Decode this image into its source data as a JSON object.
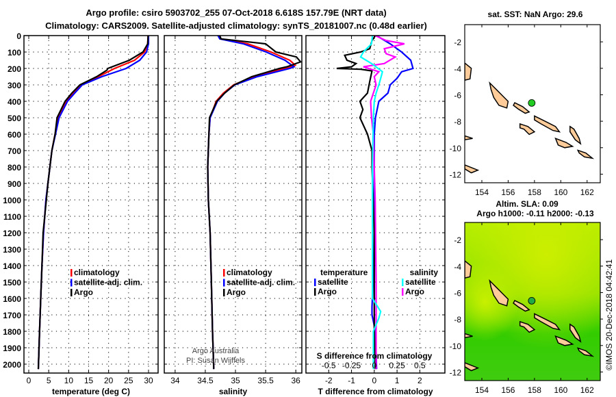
{
  "title": [
    "Argo profile: csiro 5903702_255 07-Oct-2018 6.618S 157.79E (NRT data)",
    "Climatology: CARS2009. Satellite-adjusted climatology: synTS_20181007.nc (0.48d earlier)"
  ],
  "credit": "©IMOS 20-Dec-2018 04:42:41",
  "attribution": [
    "Argo Australia",
    "PI: Susan Wijffels"
  ],
  "chart_data": [
    {
      "id": "temperature",
      "type": "line",
      "xlabel": "temperature (deg C)",
      "xlim": [
        -1.2,
        32.4
      ],
      "xticks": [
        0,
        5,
        10,
        15,
        20,
        25,
        30
      ],
      "ylim": [
        2050,
        0
      ],
      "yticks": [
        0,
        100,
        200,
        300,
        400,
        500,
        600,
        700,
        800,
        900,
        1000,
        1100,
        1200,
        1300,
        1400,
        1500,
        1600,
        1700,
        1800,
        1900,
        2000
      ],
      "grid": true,
      "legend": [
        {
          "label": "climatology",
          "color": "#ff0000"
        },
        {
          "label": "satellite-adj. clim.",
          "color": "#0000ff"
        },
        {
          "label": "Argo",
          "color": "#000000"
        }
      ],
      "series": [
        {
          "name": "climatology",
          "color": "#ff0000",
          "depth": [
            0,
            50,
            100,
            150,
            200,
            250,
            300,
            350,
            400,
            500,
            600,
            700,
            800,
            900,
            1000,
            1200,
            1400,
            1600,
            1800,
            2030
          ],
          "values": [
            29.9,
            29.8,
            29,
            26.5,
            21.5,
            17.4,
            13.1,
            11.2,
            9.5,
            7.4,
            6.6,
            5.8,
            5.3,
            4.8,
            4.3,
            3.7,
            3.3,
            3.0,
            2.7,
            2.4
          ]
        },
        {
          "name": "satellite-adj. clim.",
          "color": "#0000ff",
          "depth": [
            0,
            50,
            100,
            150,
            200,
            250,
            300,
            350,
            400,
            500,
            600,
            700,
            800,
            900,
            1000,
            1200,
            1400,
            1600,
            1800,
            2030
          ],
          "values": [
            30,
            30,
            29.5,
            27.8,
            24.4,
            18.3,
            13.4,
            11.5,
            9.7,
            7.6,
            6.7,
            5.8,
            5.3,
            4.8,
            4.3,
            3.7,
            3.3,
            3.0,
            2.7,
            2.4
          ]
        },
        {
          "name": "Argo",
          "color": "#000000",
          "depth": [
            0,
            50,
            100,
            150,
            200,
            210,
            250,
            300,
            350,
            400,
            500,
            600,
            700,
            800,
            900,
            1000,
            1200,
            1400,
            1600,
            1800,
            2030
          ],
          "values": [
            29.9,
            29.8,
            28.6,
            25.2,
            19.8,
            19.6,
            17,
            12.8,
            10.8,
            9.1,
            7.1,
            6.6,
            5.8,
            5.3,
            4.8,
            4.4,
            3.6,
            3.3,
            3.0,
            2.7,
            2.4
          ]
        }
      ]
    },
    {
      "id": "salinity",
      "type": "line",
      "xlabel": "salinity",
      "xlim": [
        33.82,
        36.1
      ],
      "xticks": [
        34,
        34.5,
        35,
        35.5,
        36
      ],
      "ylim": [
        2050,
        0
      ],
      "grid": true,
      "legend": [
        {
          "label": "climatology",
          "color": "#ff0000"
        },
        {
          "label": "satellite-adj. clim.",
          "color": "#0000ff"
        },
        {
          "label": "Argo",
          "color": "#000000"
        }
      ],
      "series": [
        {
          "name": "climatology",
          "color": "#ff0000",
          "depth": [
            0,
            20,
            50,
            100,
            150,
            180,
            200,
            250,
            300,
            350,
            400,
            500,
            600,
            800,
            1000,
            1200,
            1500,
            1800,
            2030
          ],
          "values": [
            34.72,
            34.75,
            35.2,
            35.59,
            35.9,
            35.99,
            35.82,
            35.3,
            34.97,
            34.8,
            34.68,
            34.58,
            34.56,
            34.54,
            34.55,
            34.58,
            34.6,
            34.62,
            34.64
          ]
        },
        {
          "name": "satellite-adj. clim.",
          "color": "#0000ff",
          "depth": [
            0,
            20,
            50,
            100,
            150,
            190,
            200,
            250,
            300,
            350,
            400,
            500,
            600,
            800,
            1000,
            1200,
            1500,
            1800,
            2030
          ],
          "values": [
            34.71,
            34.74,
            35.13,
            35.51,
            35.82,
            35.97,
            35.9,
            35.36,
            34.99,
            34.82,
            34.7,
            34.58,
            34.56,
            34.54,
            34.55,
            34.58,
            34.6,
            34.62,
            34.64
          ]
        },
        {
          "name": "Argo",
          "color": "#000000",
          "depth": [
            0,
            20,
            50,
            100,
            130,
            160,
            190,
            200,
            250,
            300,
            350,
            400,
            500,
            600,
            800,
            1000,
            1200,
            1500,
            1800,
            2030
          ],
          "values": [
            34.74,
            34.76,
            35.5,
            35.67,
            36.01,
            36.08,
            35.85,
            35.73,
            35.27,
            34.98,
            34.82,
            34.69,
            34.57,
            34.56,
            34.54,
            34.55,
            34.58,
            34.6,
            34.62,
            34.64
          ]
        }
      ]
    },
    {
      "id": "difference",
      "type": "line",
      "xlabel": "T difference from climatology",
      "xlabel2": "S difference from climatology",
      "xlim": [
        -3,
        3.1
      ],
      "xticks": [
        -2,
        -1,
        0,
        1,
        2
      ],
      "xticks2": [
        -0.5,
        -0.25,
        0,
        0.25,
        0.5
      ],
      "xticks2_labels": [
        "-0.5",
        "-0.25",
        "0",
        "0.25",
        "0.5"
      ],
      "ylim": [
        2050,
        0
      ],
      "grid": true,
      "legend_t_title": "temperature",
      "legend_s_title": "salinity",
      "legend_t": [
        {
          "label": "satellite",
          "color": "#0000ff"
        },
        {
          "label": "Argo",
          "color": "#000000"
        }
      ],
      "legend_s": [
        {
          "label": "satellite",
          "color": "#00ffff"
        },
        {
          "label": "Argo",
          "color": "#ff00ff"
        }
      ],
      "series": [
        {
          "name": "T satellite",
          "scale": "T",
          "color": "#0000ff",
          "depth": [
            0,
            50,
            100,
            150,
            200,
            220,
            260,
            300,
            350,
            400,
            500,
            600,
            800,
            1000,
            1200,
            1500,
            1650,
            1700,
            1800,
            2030
          ],
          "values": [
            0.1,
            0.7,
            1.2,
            1.6,
            1.7,
            1.2,
            1.0,
            0.7,
            0.6,
            0.2,
            0.05,
            0,
            0,
            0,
            0,
            -0.05,
            -0.1,
            -0.1,
            0.05,
            0.1
          ]
        },
        {
          "name": "T Argo",
          "scale": "T",
          "color": "#000000",
          "depth": [
            0,
            30,
            80,
            100,
            120,
            150,
            170,
            190,
            200,
            205,
            215,
            280,
            350,
            400,
            450,
            500,
            600,
            700,
            800,
            1000,
            1200,
            1500,
            1800,
            2030
          ],
          "values": [
            0.05,
            -0.1,
            -0.2,
            -0.6,
            -1.3,
            -1.2,
            -0.8,
            -1.0,
            -1.65,
            -0.6,
            -0.1,
            -0.2,
            -0.3,
            -0.63,
            -0.5,
            -0.63,
            -0.3,
            -0.1,
            -0.1,
            -0.05,
            0,
            0,
            0,
            0.05
          ]
        },
        {
          "name": "S Argo",
          "scale": "S",
          "color": "#ff00ff",
          "depth": [
            0,
            30,
            50,
            80,
            110,
            130,
            170,
            190,
            220,
            250,
            300,
            400,
            500,
            600,
            800,
            1000,
            1500,
            2030
          ],
          "values": [
            0.01,
            0.13,
            0.33,
            0.11,
            0.13,
            0.23,
            0.11,
            -0.12,
            0.05,
            0,
            0.02,
            -0.04,
            -0.03,
            -0.01,
            0,
            0.01,
            0.02,
            0.02
          ]
        },
        {
          "name": "S satellite",
          "scale": "S",
          "color": "#00ffff",
          "depth": [
            0,
            50,
            100,
            130,
            170,
            220,
            260,
            300,
            350,
            400,
            500,
            800,
            1200,
            1600,
            1680,
            1720,
            1800,
            2030
          ],
          "values": [
            -0.02,
            -0.03,
            -0.12,
            -0.15,
            -0.03,
            0.09,
            0.07,
            0.05,
            0.02,
            0,
            -0.01,
            -0.02,
            -0.02,
            -0.02,
            0.07,
            0.05,
            -0.01,
            -0.01
          ]
        }
      ]
    },
    {
      "id": "map-sst",
      "type": "map",
      "title": "sat. SST: NaN Argo: 29.6",
      "lonlim": [
        152.7,
        163
      ],
      "latlim": [
        -12.65,
        -0.7
      ],
      "xticks": [
        154,
        156,
        158,
        160,
        162
      ],
      "yticks": [
        -2,
        -4,
        -6,
        -8,
        -10,
        -12
      ],
      "float_position": [
        157.79,
        -6.618
      ],
      "float_color": "#22cc22"
    },
    {
      "id": "map-sla",
      "type": "heatmap",
      "title": [
        "Altim. SLA: 0.09",
        "Argo h1000: -0.11 h2000: -0.13"
      ],
      "lonlim": [
        152.7,
        163
      ],
      "latlim": [
        -12.65,
        -0.7
      ],
      "xticks": [
        154,
        156,
        158,
        160,
        162
      ],
      "yticks": [
        -2,
        -4,
        -6,
        -8,
        -10,
        -12
      ],
      "float_position": [
        157.79,
        -6.618
      ],
      "float_color": "#22aa44"
    }
  ],
  "land_color": "#ffcc99",
  "islands": [
    [
      [
        152.7,
        -3.6
      ],
      [
        153.2,
        -4.0
      ],
      [
        153.1,
        -4.8
      ],
      [
        152.7,
        -4.9
      ]
    ],
    [
      [
        154.6,
        -5.1
      ],
      [
        155.1,
        -5.6
      ],
      [
        155.6,
        -6.1
      ],
      [
        156.0,
        -6.5
      ],
      [
        155.9,
        -7.0
      ],
      [
        155.3,
        -6.8
      ],
      [
        154.9,
        -6.2
      ],
      [
        154.7,
        -5.6
      ]
    ],
    [
      [
        156.5,
        -6.6
      ],
      [
        157.1,
        -6.9
      ],
      [
        157.6,
        -7.3
      ],
      [
        157.3,
        -7.4
      ],
      [
        156.8,
        -7.1
      ],
      [
        156.4,
        -6.8
      ]
    ],
    [
      [
        158.0,
        -7.6
      ],
      [
        158.8,
        -8.0
      ],
      [
        159.6,
        -8.4
      ],
      [
        159.9,
        -8.8
      ],
      [
        159.4,
        -8.7
      ],
      [
        158.5,
        -8.2
      ],
      [
        158.0,
        -7.9
      ]
    ],
    [
      [
        156.9,
        -8.2
      ],
      [
        157.5,
        -8.4
      ],
      [
        158.0,
        -8.8
      ],
      [
        157.6,
        -9.0
      ],
      [
        157.2,
        -8.6
      ],
      [
        156.9,
        -8.5
      ]
    ],
    [
      [
        159.6,
        -9.3
      ],
      [
        160.4,
        -9.6
      ],
      [
        160.9,
        -9.9
      ],
      [
        160.3,
        -10.0
      ],
      [
        159.8,
        -9.8
      ]
    ],
    [
      [
        160.7,
        -8.4
      ],
      [
        161.0,
        -8.6
      ],
      [
        161.4,
        -9.3
      ],
      [
        161.5,
        -9.7
      ],
      [
        161.1,
        -9.4
      ],
      [
        160.7,
        -8.8
      ]
    ],
    [
      [
        161.3,
        -10.2
      ],
      [
        161.9,
        -10.4
      ],
      [
        162.4,
        -10.8
      ],
      [
        161.8,
        -10.7
      ],
      [
        161.4,
        -10.4
      ]
    ],
    [
      [
        152.7,
        -9.1
      ],
      [
        153.3,
        -9.3
      ],
      [
        152.7,
        -9.4
      ]
    ],
    [
      [
        152.7,
        -11.3
      ],
      [
        153.7,
        -11.7
      ],
      [
        153.2,
        -11.9
      ],
      [
        152.7,
        -11.6
      ]
    ]
  ]
}
